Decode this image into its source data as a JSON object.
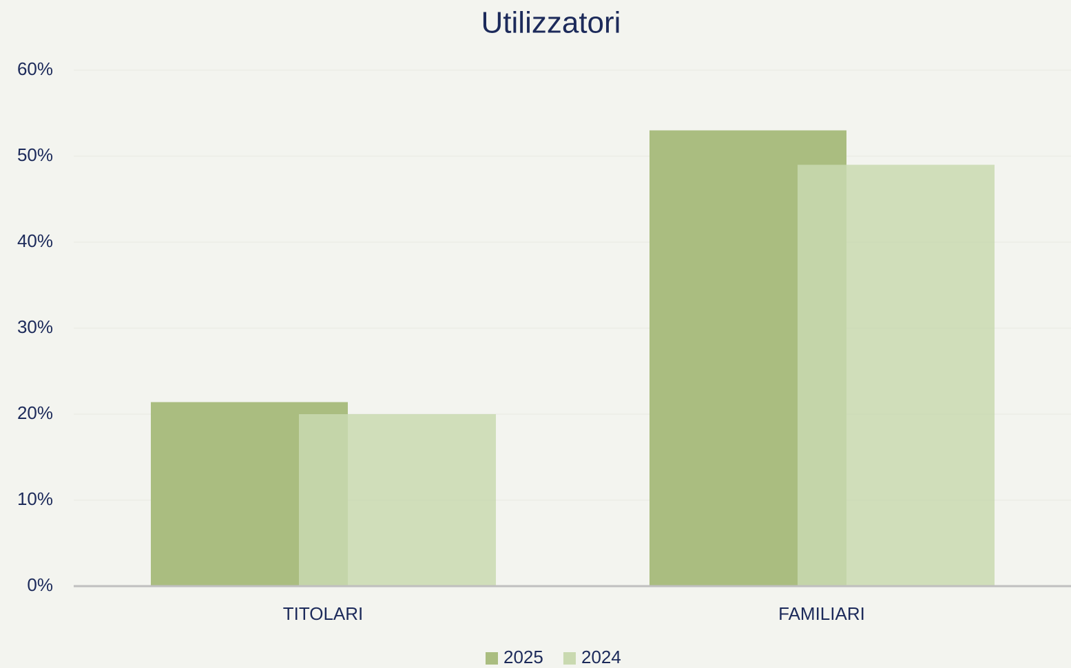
{
  "chart_data": {
    "type": "bar",
    "title": "Utilizzatori",
    "categories": [
      "TITOLARI",
      "FAMILIARI"
    ],
    "series": [
      {
        "name": "2025",
        "color": "#aabd80",
        "values": [
          21.4,
          53
        ]
      },
      {
        "name": "2024",
        "color": "#c9d9b0",
        "values": [
          20,
          49
        ]
      }
    ],
    "ylim": [
      0,
      60
    ],
    "yticks": [
      {
        "value": 0,
        "label": "0%"
      },
      {
        "value": 10,
        "label": "10%"
      },
      {
        "value": 20,
        "label": "20%"
      },
      {
        "value": 30,
        "label": "30%"
      },
      {
        "value": 40,
        "label": "40%"
      },
      {
        "value": 50,
        "label": "50%"
      },
      {
        "value": 60,
        "label": "60%"
      }
    ],
    "grid": true,
    "legend": "bottom"
  }
}
